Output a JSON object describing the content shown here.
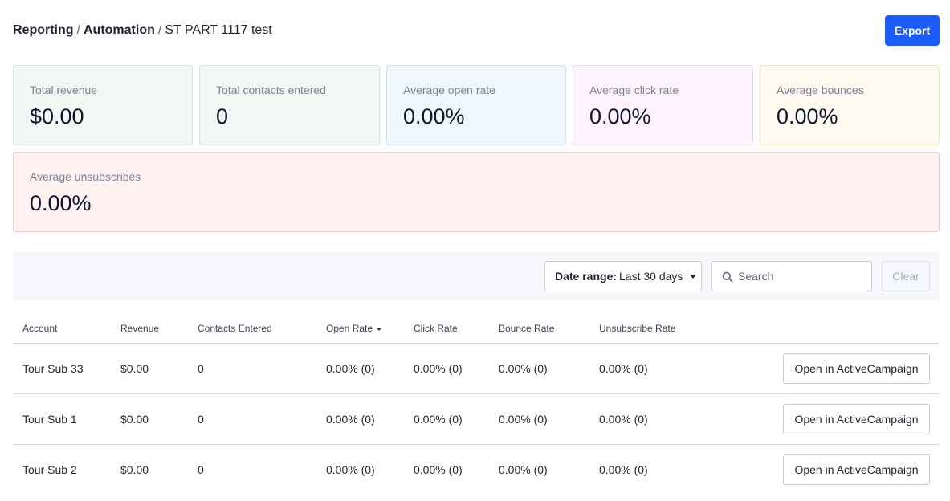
{
  "header": {
    "breadcrumb": {
      "reporting": "Reporting",
      "sep1": "/",
      "automation": "Automation",
      "sep2": "/",
      "current": "ST PART 1117 test"
    },
    "export_label": "Export"
  },
  "stats": [
    {
      "label": "Total revenue",
      "value": "$0.00"
    },
    {
      "label": "Total contacts entered",
      "value": "0"
    },
    {
      "label": "Average open rate",
      "value": "0.00%"
    },
    {
      "label": "Average click rate",
      "value": "0.00%"
    },
    {
      "label": "Average bounces",
      "value": "0.00%"
    },
    {
      "label": "Average unsubscribes",
      "value": "0.00%"
    }
  ],
  "toolbar": {
    "date_range_label": "Date range:",
    "date_range_value": "Last 30 days",
    "search_placeholder": "Search",
    "clear_label": "Clear"
  },
  "table": {
    "columns": [
      "Account",
      "Revenue",
      "Contacts Entered",
      "Open Rate",
      "Click Rate",
      "Bounce Rate",
      "Unsubscribe Rate"
    ],
    "action_label": "Open in ActiveCampaign",
    "rows": [
      {
        "account": "Tour Sub 33",
        "revenue": "$0.00",
        "contacts": "0",
        "open": "0.00% (0)",
        "click": "0.00% (0)",
        "bounce": "0.00% (0)",
        "unsub": "0.00% (0)"
      },
      {
        "account": "Tour Sub 1",
        "revenue": "$0.00",
        "contacts": "0",
        "open": "0.00% (0)",
        "click": "0.00% (0)",
        "bounce": "0.00% (0)",
        "unsub": "0.00% (0)"
      },
      {
        "account": "Tour Sub 2",
        "revenue": "$0.00",
        "contacts": "0",
        "open": "0.00% (0)",
        "click": "0.00% (0)",
        "bounce": "0.00% (0)",
        "unsub": "0.00% (0)"
      }
    ]
  },
  "colors": {
    "accent": "#1a5cff",
    "text": "#1f2430"
  }
}
